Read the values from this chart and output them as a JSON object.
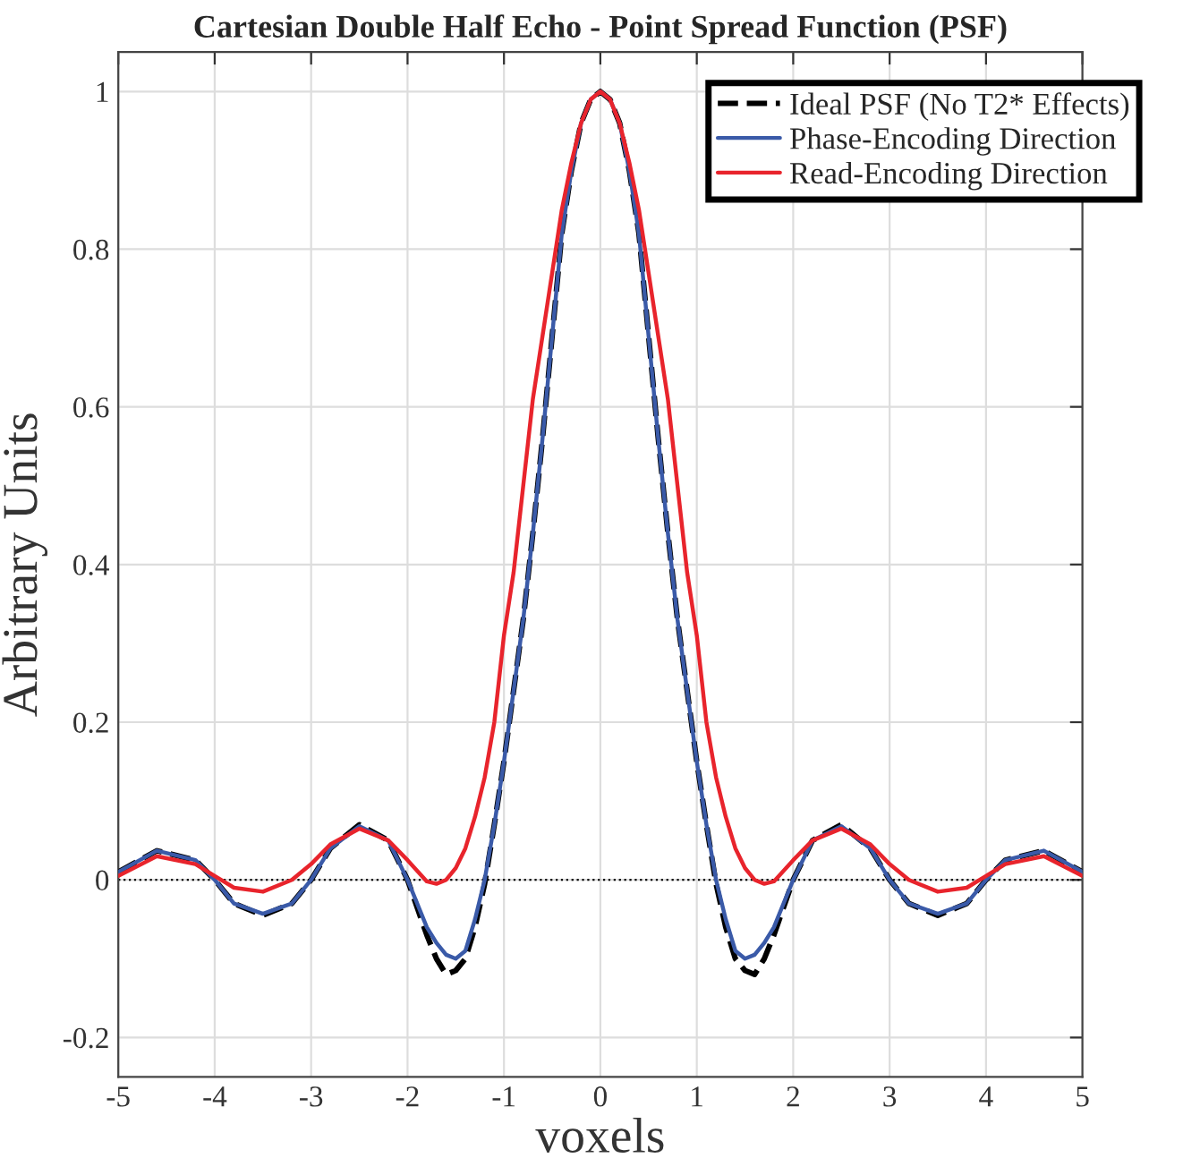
{
  "chart_data": {
    "type": "line",
    "title": "Cartesian Double Half Echo - Point Spread Function (PSF)",
    "xlabel": "voxels",
    "ylabel": "Arbitrary Units",
    "x": [
      -5,
      -4.6,
      -4.2,
      -4,
      -3.8,
      -3.5,
      -3.2,
      -3,
      -2.8,
      -2.5,
      -2.2,
      -2,
      -1.8,
      -1.7,
      -1.6,
      -1.5,
      -1.4,
      -1.3,
      -1.2,
      -1.1,
      -1,
      -0.9,
      -0.8,
      -0.7,
      -0.6,
      -0.5,
      -0.4,
      -0.3,
      -0.2,
      -0.1,
      0,
      0.1,
      0.2,
      0.3,
      0.4,
      0.5,
      0.6,
      0.7,
      0.8,
      0.9,
      1,
      1.1,
      1.2,
      1.3,
      1.4,
      1.5,
      1.6,
      1.7,
      1.8,
      2,
      2.2,
      2.5,
      2.8,
      3,
      3.2,
      3.5,
      3.8,
      4,
      4.2,
      4.6,
      5
    ],
    "series": [
      {
        "name": "Ideal PSF (No T2* Effects)",
        "color": "#000000",
        "line_style": "dashed",
        "values": [
          0.01,
          0.037,
          0.025,
          0.0,
          -0.03,
          -0.045,
          -0.03,
          0.0,
          0.04,
          0.07,
          0.05,
          0.0,
          -0.07,
          -0.1,
          -0.12,
          -0.115,
          -0.1,
          -0.06,
          -0.005,
          0.07,
          0.15,
          0.24,
          0.33,
          0.44,
          0.56,
          0.69,
          0.82,
          0.9,
          0.96,
          0.99,
          1,
          0.99,
          0.96,
          0.9,
          0.82,
          0.69,
          0.56,
          0.44,
          0.33,
          0.24,
          0.15,
          0.07,
          -0.005,
          -0.06,
          -0.1,
          -0.115,
          -0.12,
          -0.1,
          -0.07,
          0.0,
          0.05,
          0.07,
          0.04,
          0.0,
          -0.03,
          -0.045,
          -0.03,
          0.0,
          0.025,
          0.037,
          0.01
        ]
      },
      {
        "name": "Phase-Encoding Direction",
        "color": "#3a5aa8",
        "line_style": "solid",
        "values": [
          0.01,
          0.037,
          0.025,
          0.0,
          -0.03,
          -0.043,
          -0.03,
          0.0,
          0.04,
          0.068,
          0.05,
          0.0,
          -0.06,
          -0.08,
          -0.095,
          -0.1,
          -0.09,
          -0.05,
          0.0,
          0.07,
          0.15,
          0.24,
          0.33,
          0.44,
          0.56,
          0.69,
          0.82,
          0.9,
          0.96,
          0.99,
          1,
          0.99,
          0.96,
          0.9,
          0.82,
          0.69,
          0.56,
          0.44,
          0.33,
          0.24,
          0.15,
          0.07,
          0.0,
          -0.05,
          -0.09,
          -0.1,
          -0.095,
          -0.08,
          -0.06,
          0.0,
          0.05,
          0.068,
          0.04,
          0.0,
          -0.03,
          -0.043,
          -0.03,
          0.0,
          0.025,
          0.037,
          0.01
        ]
      },
      {
        "name": "Read-Encoding Direction",
        "color": "#e8242c",
        "line_style": "solid",
        "values": [
          0.005,
          0.03,
          0.02,
          0.005,
          -0.01,
          -0.015,
          0.0,
          0.02,
          0.045,
          0.065,
          0.05,
          0.025,
          -0.002,
          -0.005,
          0.0,
          0.015,
          0.04,
          0.08,
          0.13,
          0.2,
          0.31,
          0.39,
          0.5,
          0.61,
          0.69,
          0.77,
          0.85,
          0.91,
          0.96,
          0.99,
          1,
          0.99,
          0.96,
          0.91,
          0.85,
          0.77,
          0.69,
          0.61,
          0.5,
          0.39,
          0.31,
          0.2,
          0.13,
          0.08,
          0.04,
          0.015,
          0.0,
          -0.005,
          -0.002,
          0.025,
          0.05,
          0.065,
          0.045,
          0.02,
          0.0,
          -0.015,
          -0.01,
          0.005,
          0.02,
          0.03,
          0.005
        ]
      }
    ],
    "xlim": [
      -5,
      5
    ],
    "xticks": [
      -5,
      -4,
      -3,
      -2,
      -1,
      0,
      1,
      2,
      3,
      4,
      5
    ],
    "ylim": [
      -0.25,
      1.05
    ],
    "yticks": [
      -0.2,
      0,
      0.2,
      0.4,
      0.6,
      0.8,
      1
    ],
    "ref_lines": [
      {
        "axis": "y",
        "value": 0,
        "color": "#000000",
        "line_style": "dotted"
      }
    ],
    "grid": true,
    "legend": "top right"
  }
}
